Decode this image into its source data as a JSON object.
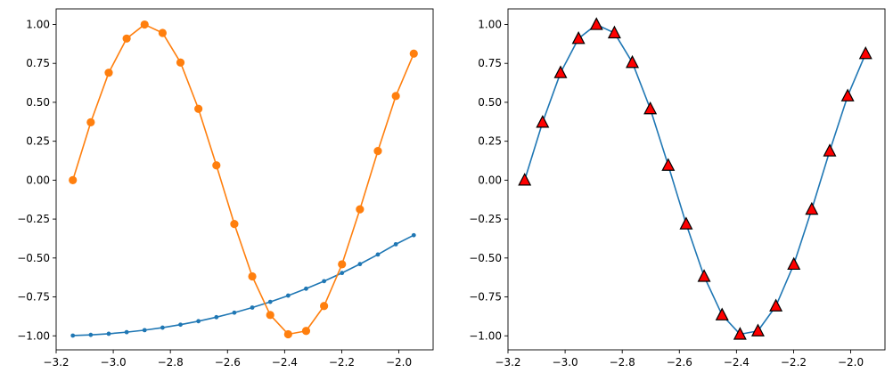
{
  "chart_data": [
    {
      "type": "line",
      "title": "",
      "xlabel": "",
      "ylabel": "",
      "xlim": [
        -3.2,
        -1.88
      ],
      "ylim": [
        -1.09,
        1.1
      ],
      "xticks": [
        -3.2,
        -3.0,
        -2.8,
        -2.6,
        -2.4,
        -2.2,
        -2.0
      ],
      "xtick_labels": [
        "−3.2",
        "−3.0",
        "−2.8",
        "−2.6",
        "−2.4",
        "−2.2",
        "−2.0"
      ],
      "yticks": [
        -1.0,
        -0.75,
        -0.5,
        -0.25,
        0.0,
        0.25,
        0.5,
        0.75,
        1.0
      ],
      "ytick_labels": [
        "−1.00",
        "−0.75",
        "−0.50",
        "−0.25",
        "0.00",
        "0.25",
        "0.50",
        "0.75",
        "1.00"
      ],
      "grid": false,
      "x": [
        -3.1416,
        -3.0788,
        -3.0159,
        -2.9531,
        -2.8903,
        -2.8274,
        -2.7646,
        -2.7018,
        -2.6389,
        -2.5761,
        -2.5133,
        -2.4504,
        -2.3876,
        -2.3248,
        -2.2619,
        -2.1991,
        -2.1363,
        -2.0735,
        -2.0106,
        -1.9478
      ],
      "series": [
        {
          "color": "#1f77b4",
          "marker": "point",
          "values": [
            -0.9983,
            -0.9938,
            -0.9866,
            -0.9764,
            -0.9635,
            -0.9474,
            -0.9283,
            -0.9059,
            -0.8802,
            -0.8511,
            -0.8184,
            -0.7818,
            -0.7416,
            -0.6972,
            -0.6488,
            -0.5962,
            -0.539,
            -0.4776,
            -0.4117,
            -0.3536
          ]
        },
        {
          "color": "#ff7f0e",
          "marker": "circle",
          "values": [
            0.0,
            0.3717,
            0.6901,
            0.9096,
            0.9996,
            0.9458,
            0.7557,
            0.4582,
            0.0951,
            -0.2817,
            -0.6182,
            -0.866,
            -0.9898,
            -0.9686,
            -0.8085,
            -0.5406,
            -0.1874,
            0.1874,
            0.5406,
            0.8125
          ]
        }
      ]
    },
    {
      "type": "line",
      "title": "",
      "xlabel": "",
      "ylabel": "",
      "xlim": [
        -3.2,
        -1.88
      ],
      "ylim": [
        -1.09,
        1.1
      ],
      "xticks": [
        -3.2,
        -3.0,
        -2.8,
        -2.6,
        -2.4,
        -2.2,
        -2.0
      ],
      "xtick_labels": [
        "−3.2",
        "−3.0",
        "−2.8",
        "−2.6",
        "−2.4",
        "−2.2",
        "−2.0"
      ],
      "yticks": [
        -1.0,
        -0.75,
        -0.5,
        -0.25,
        0.0,
        0.25,
        0.5,
        0.75,
        1.0
      ],
      "ytick_labels": [
        "−1.00",
        "−0.75",
        "−0.50",
        "−0.25",
        "0.00",
        "0.25",
        "0.50",
        "0.75",
        "1.00"
      ],
      "grid": false,
      "x": [
        -3.1416,
        -3.0788,
        -3.0159,
        -2.9531,
        -2.8903,
        -2.8274,
        -2.7646,
        -2.7018,
        -2.6389,
        -2.5761,
        -2.5133,
        -2.4504,
        -2.3876,
        -2.3248,
        -2.2619,
        -2.1991,
        -2.1363,
        -2.0735,
        -2.0106,
        -1.9478
      ],
      "series": [
        {
          "color": "#1f77b4",
          "marker": "triangle",
          "marker_face_color": "#ff0000",
          "marker_edge_color": "#000000",
          "values": [
            0.0,
            0.3717,
            0.6901,
            0.9096,
            0.9996,
            0.9458,
            0.7557,
            0.4582,
            0.0951,
            -0.2817,
            -0.6182,
            -0.866,
            -0.9898,
            -0.9686,
            -0.8085,
            -0.5406,
            -0.1874,
            0.1874,
            0.5406,
            0.8125
          ]
        }
      ]
    }
  ]
}
